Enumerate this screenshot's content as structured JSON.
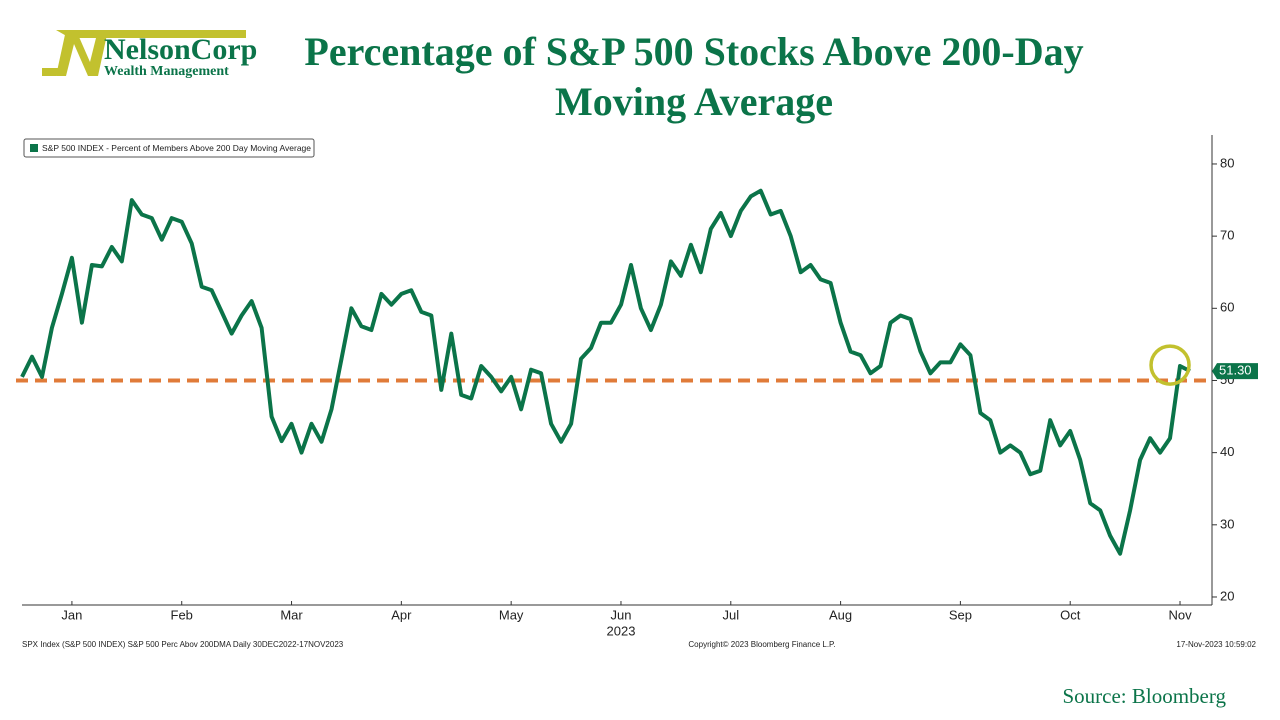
{
  "logo": {
    "name": "NelsonCorp",
    "tagline": "Wealth Management"
  },
  "chart_data": {
    "type": "line",
    "title": "Percentage of S&P 500 Stocks Above 200-Day Moving Average",
    "categories": [
      null,
      null,
      null,
      null,
      null,
      "Jan",
      null,
      null,
      null,
      null,
      null,
      null,
      null,
      null,
      null,
      null,
      "Feb",
      null,
      null,
      null,
      null,
      null,
      null,
      null,
      null,
      null,
      null,
      "Mar",
      null,
      null,
      null,
      null,
      null,
      null,
      null,
      null,
      null,
      null,
      "Apr",
      null,
      null,
      null,
      null,
      null,
      null,
      null,
      null,
      null,
      null,
      "May",
      null,
      null,
      null,
      null,
      null,
      null,
      null,
      null,
      null,
      null,
      "Jun",
      null,
      null,
      null,
      null,
      null,
      null,
      null,
      null,
      null,
      null,
      "Jul",
      null,
      null,
      null,
      null,
      null,
      null,
      null,
      null,
      null,
      null,
      "Aug",
      null,
      null,
      null,
      null,
      null,
      null,
      null,
      null,
      null,
      null,
      null,
      "Sep",
      null,
      null,
      null,
      null,
      null,
      null,
      null,
      null,
      null,
      null,
      "Oct",
      null,
      null,
      null,
      null,
      null,
      null,
      null,
      null,
      null,
      null,
      "Nov",
      null
    ],
    "x_sublabel": "2023",
    "series": [
      {
        "name": "S&P 500 INDEX - Percent of Members Above 200 Day Moving Average",
        "color": "#0b7449",
        "values": [
          50.5,
          53.3,
          50.5,
          57.3,
          62,
          67,
          58,
          66,
          65.8,
          68.5,
          66.5,
          75,
          73,
          72.5,
          69.5,
          72.5,
          72,
          69,
          63,
          62.5,
          59.5,
          56.5,
          59,
          61,
          57.3,
          45,
          41.6,
          44,
          40,
          44,
          41.5,
          46,
          53,
          60,
          57.5,
          57,
          62,
          60.5,
          62,
          62.5,
          59.5,
          59,
          48.7,
          56.5,
          48,
          47.5,
          52,
          50.5,
          48.5,
          50.5,
          46,
          51.5,
          51,
          44,
          41.5,
          44,
          53,
          54.5,
          58,
          58,
          60.5,
          66,
          60,
          57,
          60.5,
          66.5,
          64.5,
          68.8,
          65,
          71,
          73.2,
          70,
          73.5,
          75.5,
          76.3,
          73,
          73.5,
          70,
          65,
          66,
          64,
          63.5,
          58,
          54,
          53.5,
          51,
          52,
          58,
          59,
          58.5,
          54,
          51,
          52.5,
          52.5,
          55,
          53.5,
          45.5,
          44.5,
          40,
          41,
          40,
          37,
          37.5,
          44.5,
          41,
          43,
          39,
          33,
          32,
          28.5,
          26,
          32,
          39,
          42,
          40,
          42,
          52,
          51.3
        ]
      }
    ],
    "end_label": "51.30",
    "reference_line": {
      "value": 50,
      "color": "#e07b39"
    },
    "ylim": [
      19,
      84
    ],
    "yticks": [
      20,
      30,
      40,
      50,
      60,
      70,
      80
    ],
    "footer_left": "SPX Index (S&P 500 INDEX) S&P 500 Perc Abov 200DMA  Daily 30DEC2022-17NOV2023",
    "footer_center": "Copyright© 2023 Bloomberg Finance L.P.",
    "footer_right": "17-Nov-2023 10:59:02",
    "source": "Source: Bloomberg"
  }
}
